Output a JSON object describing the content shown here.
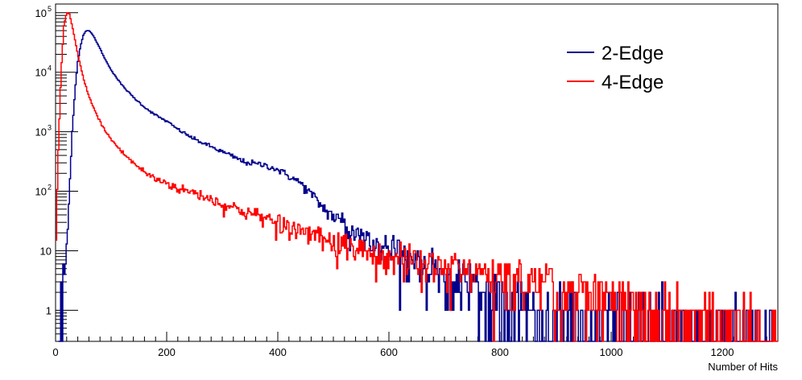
{
  "chart_data": {
    "type": "line",
    "xlabel": "Number of Hits",
    "ylabel": "",
    "xlim": [
      0,
      1300
    ],
    "ylim": [
      0.3,
      140000
    ],
    "y_scale": "log",
    "grid": false,
    "legend_position": "top-right",
    "x_ticks": [
      {
        "value": 0,
        "label": "0"
      },
      {
        "value": 200,
        "label": "200"
      },
      {
        "value": 400,
        "label": "400"
      },
      {
        "value": 600,
        "label": "600"
      },
      {
        "value": 800,
        "label": "800"
      },
      {
        "value": 1000,
        "label": "1000"
      },
      {
        "value": 1200,
        "label": "1200"
      }
    ],
    "y_ticks": [
      {
        "value": 1,
        "label": "1"
      },
      {
        "value": 10,
        "label": "10"
      },
      {
        "value": 100,
        "label": "10",
        "exp": "2"
      },
      {
        "value": 1000,
        "label": "10",
        "exp": "3"
      },
      {
        "value": 10000,
        "label": "10",
        "exp": "4"
      },
      {
        "value": 100000,
        "label": "10",
        "exp": "5"
      }
    ],
    "series": [
      {
        "name": "2-Edge",
        "color": "#00008b",
        "x": [
          5,
          10,
          15,
          20,
          25,
          30,
          35,
          40,
          45,
          50,
          55,
          60,
          65,
          70,
          80,
          90,
          100,
          110,
          120,
          140,
          160,
          180,
          200,
          220,
          250,
          280,
          300,
          320,
          340,
          360,
          380,
          400,
          420,
          440,
          460,
          480,
          500,
          520,
          540,
          560,
          580,
          600,
          620,
          640,
          660,
          680,
          700,
          720,
          740,
          760,
          780,
          800,
          850,
          900,
          950,
          1000,
          1050,
          1100,
          1150,
          1200,
          1250,
          1290
        ],
        "y": [
          0.3,
          1,
          3,
          10,
          100,
          1000,
          5000,
          15000,
          28000,
          42000,
          50000,
          50000,
          45000,
          38000,
          25000,
          16000,
          11000,
          8000,
          6000,
          3800,
          2600,
          1900,
          1500,
          1100,
          750,
          560,
          460,
          380,
          310,
          290,
          270,
          230,
          180,
          140,
          90,
          55,
          38,
          27,
          20,
          16,
          13,
          11,
          9,
          8,
          6,
          5,
          4,
          3,
          3,
          2,
          2,
          1.5,
          1,
          0.8,
          0.6,
          0.5,
          0.5,
          0.4,
          0.4,
          0.35,
          0.35,
          0.35
        ]
      },
      {
        "name": "4-Edge",
        "color": "#ff0000",
        "x": [
          0,
          5,
          10,
          15,
          20,
          25,
          30,
          35,
          40,
          50,
          60,
          70,
          80,
          90,
          100,
          120,
          140,
          160,
          180,
          200,
          220,
          250,
          280,
          300,
          330,
          360,
          400,
          440,
          480,
          520,
          560,
          600,
          640,
          680,
          720,
          760,
          800,
          850,
          900,
          950,
          1000,
          1050,
          1100,
          1150,
          1200,
          1250,
          1300
        ],
        "y": [
          10,
          500,
          10000,
          60000,
          100000,
          95000,
          60000,
          35000,
          20000,
          8000,
          4000,
          2300,
          1500,
          1000,
          750,
          450,
          300,
          210,
          160,
          140,
          110,
          95,
          75,
          60,
          50,
          40,
          30,
          22,
          17,
          13,
          10,
          8,
          7,
          6,
          5,
          4.5,
          4,
          3.2,
          2.5,
          2,
          1.8,
          1.3,
          1,
          0.8,
          0.6,
          0.5,
          0.4
        ]
      }
    ]
  }
}
